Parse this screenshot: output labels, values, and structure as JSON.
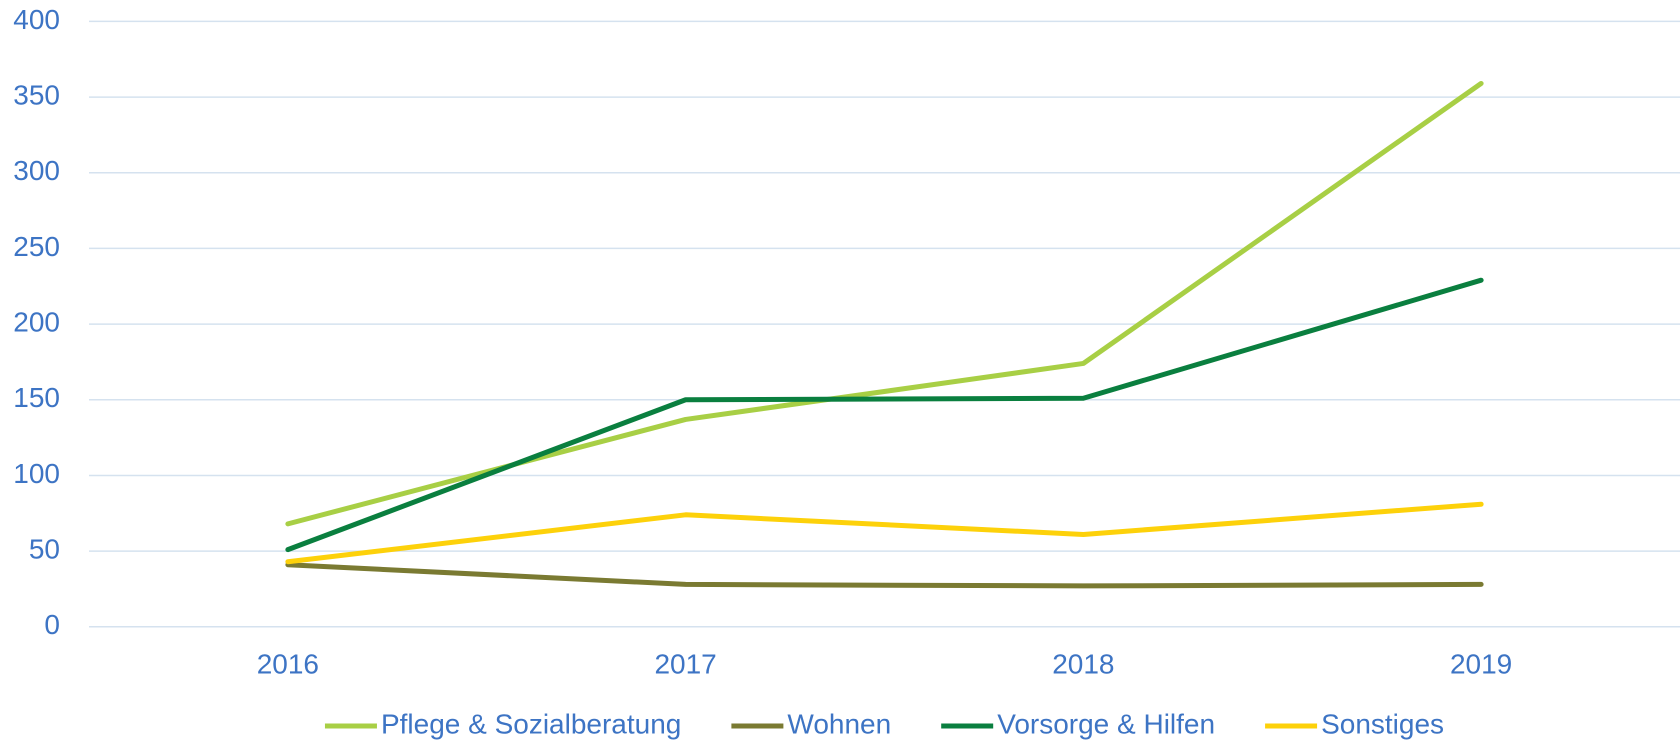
{
  "chart_data": {
    "type": "line",
    "categories": [
      "2016",
      "2017",
      "2018",
      "2019"
    ],
    "series": [
      {
        "name": "Pflege & Sozialberatung",
        "color": "#a8cf45",
        "values": [
          68,
          137,
          174,
          359
        ]
      },
      {
        "name": "Wohnen",
        "color": "#7a7a32",
        "values": [
          41,
          28,
          27,
          28
        ]
      },
      {
        "name": "Vorsorge & Hilfen",
        "color": "#0a7f3f",
        "values": [
          51,
          150,
          151,
          229
        ]
      },
      {
        "name": "Sonstiges",
        "color": "#fdd10a",
        "values": [
          43,
          74,
          61,
          81
        ]
      }
    ],
    "ylim": [
      0,
      400
    ],
    "yticks": [
      0,
      50,
      100,
      150,
      200,
      250,
      300,
      350,
      400
    ],
    "grid": true,
    "legend": "bottom"
  }
}
